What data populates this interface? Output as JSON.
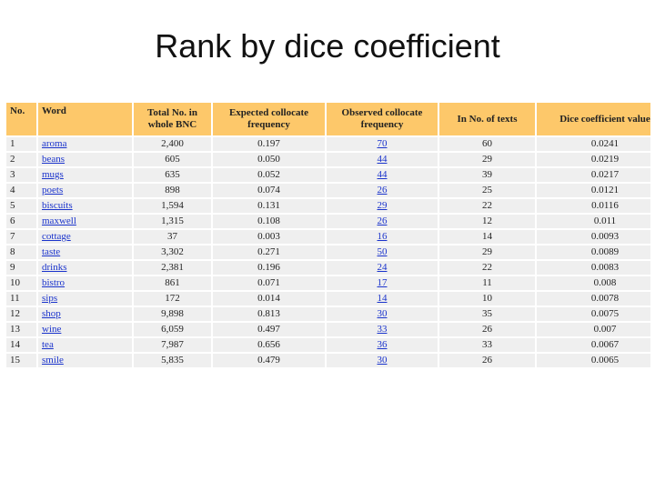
{
  "title": "Rank by dice coefficient",
  "table": {
    "header": [
      "No.",
      "Word",
      "Total No. in whole BNC",
      "Expected collocate frequency",
      "Observed collocate frequency",
      "In No. of texts",
      "Dice coefficient value"
    ],
    "rows": [
      [
        "1",
        "aroma",
        "2,400",
        "0.197",
        "70",
        "60",
        "0.0241"
      ],
      [
        "2",
        "beans",
        "605",
        "0.050",
        "44",
        "29",
        "0.0219"
      ],
      [
        "3",
        "mugs",
        "635",
        "0.052",
        "44",
        "39",
        "0.0217"
      ],
      [
        "4",
        "poets",
        "898",
        "0.074",
        "26",
        "25",
        "0.0121"
      ],
      [
        "5",
        "biscuits",
        "1,594",
        "0.131",
        "29",
        "22",
        "0.0116"
      ],
      [
        "6",
        "maxwell",
        "1,315",
        "0.108",
        "26",
        "12",
        "0.011"
      ],
      [
        "7",
        "cottage",
        "37",
        "0.003",
        "16",
        "14",
        "0.0093"
      ],
      [
        "8",
        "taste",
        "3,302",
        "0.271",
        "50",
        "29",
        "0.0089"
      ],
      [
        "9",
        "drinks",
        "2,381",
        "0.196",
        "24",
        "22",
        "0.0083"
      ],
      [
        "10",
        "bistro",
        "861",
        "0.071",
        "17",
        "11",
        "0.008"
      ],
      [
        "11",
        "sips",
        "172",
        "0.014",
        "14",
        "10",
        "0.0078"
      ],
      [
        "12",
        "shop",
        "9,898",
        "0.813",
        "30",
        "35",
        "0.0075"
      ],
      [
        "13",
        "wine",
        "6,059",
        "0.497",
        "33",
        "26",
        "0.007"
      ],
      [
        "14",
        "tea",
        "7,987",
        "0.656",
        "36",
        "33",
        "0.0067"
      ],
      [
        "15",
        "smile",
        "5,835",
        "0.479",
        "30",
        "26",
        "0.0065"
      ]
    ]
  }
}
